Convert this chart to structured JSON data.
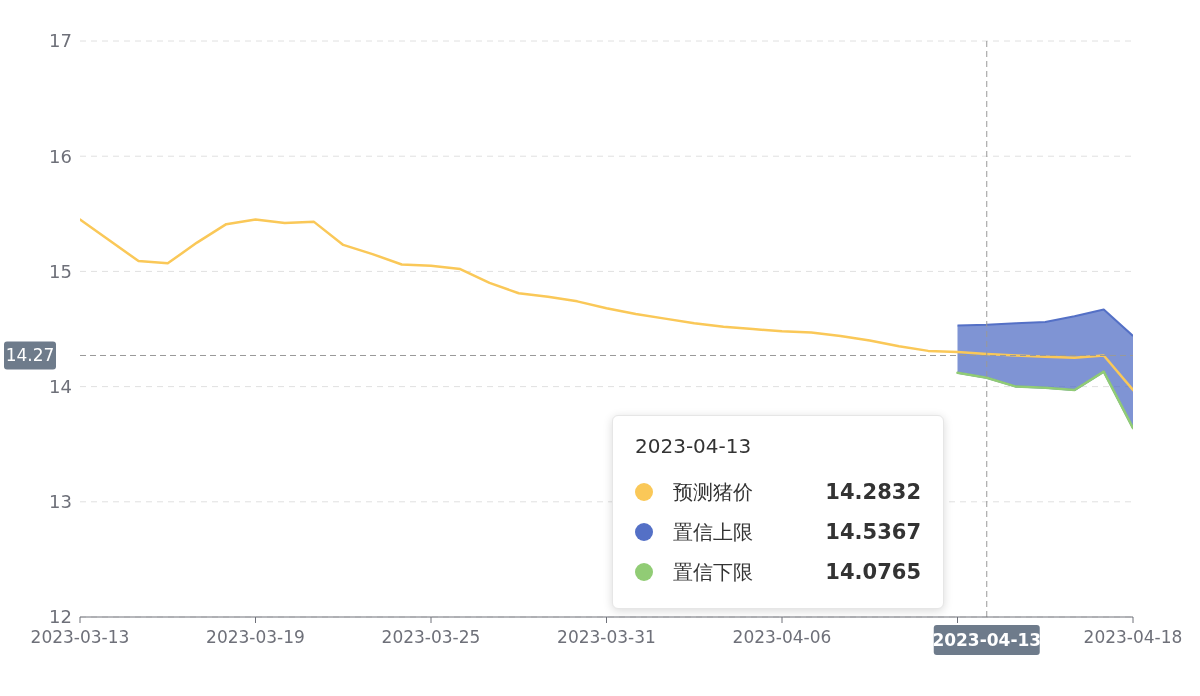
{
  "chart_data": {
    "type": "line",
    "x": [
      "2023-03-13",
      "2023-03-14",
      "2023-03-15",
      "2023-03-16",
      "2023-03-17",
      "2023-03-18",
      "2023-03-19",
      "2023-03-20",
      "2023-03-21",
      "2023-03-22",
      "2023-03-23",
      "2023-03-24",
      "2023-03-25",
      "2023-03-26",
      "2023-03-27",
      "2023-03-28",
      "2023-03-29",
      "2023-03-30",
      "2023-03-31",
      "2023-04-01",
      "2023-04-02",
      "2023-04-03",
      "2023-04-04",
      "2023-04-05",
      "2023-04-06",
      "2023-04-07",
      "2023-04-08",
      "2023-04-09",
      "2023-04-10",
      "2023-04-11",
      "2023-04-12",
      "2023-04-13",
      "2023-04-14",
      "2023-04-15",
      "2023-04-16",
      "2023-04-17",
      "2023-04-18"
    ],
    "series": [
      {
        "name": "置信上限",
        "type": "area",
        "color": "#5470c6",
        "values": [
          null,
          null,
          null,
          null,
          null,
          null,
          null,
          null,
          null,
          null,
          null,
          null,
          null,
          null,
          null,
          null,
          null,
          null,
          null,
          null,
          null,
          null,
          null,
          null,
          null,
          null,
          null,
          null,
          null,
          null,
          14.53,
          14.5367,
          14.55,
          14.56,
          14.61,
          14.67,
          14.44
        ]
      },
      {
        "name": "置信下限",
        "color": "#91cc75",
        "values": [
          null,
          null,
          null,
          null,
          null,
          null,
          null,
          null,
          null,
          null,
          null,
          null,
          null,
          null,
          null,
          null,
          null,
          null,
          null,
          null,
          null,
          null,
          null,
          null,
          null,
          null,
          null,
          null,
          null,
          null,
          14.12,
          14.0765,
          14.0,
          13.99,
          13.97,
          14.13,
          13.64
        ]
      },
      {
        "name": "预测猪价",
        "color": "#fac858",
        "values": [
          15.45,
          15.27,
          15.09,
          15.07,
          15.25,
          15.41,
          15.45,
          15.42,
          15.43,
          15.23,
          15.15,
          15.06,
          15.05,
          15.02,
          14.9,
          14.81,
          14.78,
          14.74,
          14.68,
          14.63,
          14.59,
          14.55,
          14.52,
          14.5,
          14.48,
          14.47,
          14.44,
          14.4,
          14.35,
          14.31,
          14.3,
          14.2832,
          14.27,
          14.26,
          14.25,
          14.27,
          13.97
        ]
      }
    ],
    "xlim": [
      "2023-03-13",
      "2023-04-18"
    ],
    "xticks": [
      "2023-03-13",
      "2023-03-19",
      "2023-03-25",
      "2023-03-31",
      "2023-04-06",
      {
        "value": "2023-04-12",
        "label": null
      },
      "2023-04-18"
    ],
    "ylim": [
      12,
      17
    ],
    "yticks": [
      12,
      13,
      14,
      15,
      16,
      17
    ],
    "grid": "y",
    "legend": "bottom",
    "marker": "none",
    "ref_lines": [
      {
        "axis": "x",
        "value": "2023-04-13",
        "label": "2023-04-13",
        "line_style": "dashed"
      },
      {
        "axis": "y",
        "value": 14.27,
        "label": "14.27",
        "line_style": "dashed"
      }
    ],
    "annotations": [
      "2023-04-13",
      "14.5367",
      "14.0765",
      "14.2832"
    ]
  }
}
